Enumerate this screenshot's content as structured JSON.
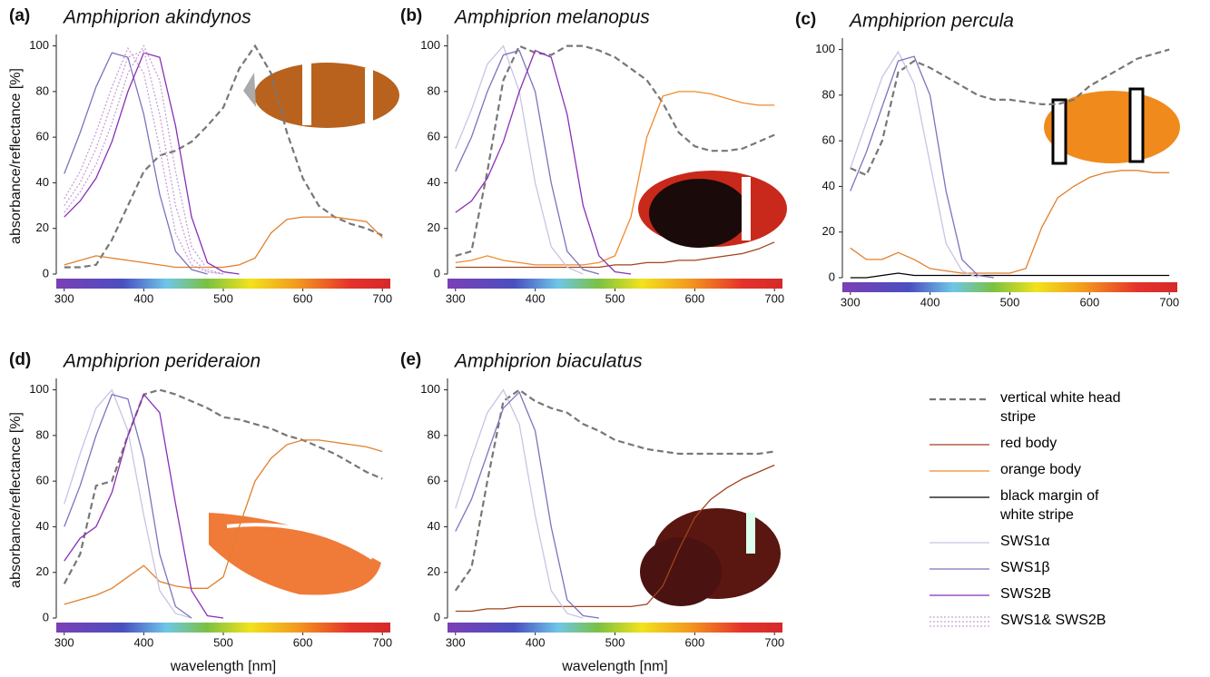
{
  "chart_data": [
    {
      "type": "line",
      "panel_label": "(a)",
      "title": "Amphiprion akindynos",
      "y_label": "absorbance/reflectance [%]",
      "x": [
        300,
        320,
        340,
        360,
        380,
        400,
        420,
        440,
        460,
        480,
        500,
        520,
        540,
        560,
        580,
        600,
        620,
        640,
        660,
        680,
        700
      ],
      "xlim": [
        290,
        710
      ],
      "ylim": [
        0,
        105
      ],
      "xticks": [
        300,
        400,
        500,
        600,
        700
      ],
      "yticks": [
        0,
        20,
        40,
        60,
        80,
        100
      ],
      "series": [
        {
          "name": "vertical white head stripe",
          "color": "#777777",
          "linestyle": "dashed",
          "values": [
            3,
            3,
            4,
            15,
            30,
            45,
            52,
            54,
            58,
            65,
            73,
            90,
            100,
            88,
            62,
            42,
            30,
            25,
            22,
            20,
            17
          ]
        },
        {
          "name": "orange body",
          "color": "#e0802c",
          "linestyle": "solid",
          "values": [
            4,
            6,
            8,
            7,
            6,
            5,
            4,
            3,
            3,
            3,
            3,
            4,
            7,
            18,
            24,
            25,
            25,
            25,
            24,
            23,
            16
          ]
        },
        {
          "name": "SWS1β",
          "color": "#7a74bc",
          "linestyle": "solid",
          "values": [
            44,
            62,
            82,
            97,
            95,
            70,
            35,
            10,
            2,
            0,
            null,
            null,
            null,
            null,
            null,
            null,
            null,
            null,
            null,
            null,
            null
          ]
        },
        {
          "name": "SWS2B",
          "color": "#8a2fb6",
          "linestyle": "solid",
          "values": [
            25,
            32,
            42,
            58,
            80,
            97,
            95,
            65,
            25,
            5,
            1,
            0,
            null,
            null,
            null,
            null,
            null,
            null,
            null,
            null,
            null
          ]
        },
        {
          "name": "SWS1& SWS2B",
          "color": "#c9a0d6",
          "linestyle": "dotted",
          "values": [
            33,
            45,
            62,
            82,
            99,
            88,
            55,
            18,
            4,
            1,
            0,
            null,
            null,
            null,
            null,
            null,
            null,
            null,
            null,
            null,
            null
          ]
        },
        {
          "name": "SWS1& SWS2B",
          "color": "#c9a0d6",
          "linestyle": "dotted",
          "values": [
            30,
            40,
            55,
            75,
            95,
            98,
            70,
            30,
            7,
            1,
            0,
            null,
            null,
            null,
            null,
            null,
            null,
            null,
            null,
            null,
            null
          ]
        },
        {
          "name": "SWS1& SWS2B",
          "color": "#c9a0d6",
          "linestyle": "dotted",
          "values": [
            27,
            36,
            48,
            66,
            88,
            100,
            85,
            45,
            12,
            2,
            0,
            null,
            null,
            null,
            null,
            null,
            null,
            null,
            null,
            null,
            null
          ]
        }
      ]
    },
    {
      "type": "line",
      "panel_label": "(b)",
      "title": "Amphiprion melanopus",
      "x": [
        300,
        320,
        340,
        360,
        380,
        400,
        420,
        440,
        460,
        480,
        500,
        520,
        540,
        560,
        580,
        600,
        620,
        640,
        660,
        680,
        700
      ],
      "xlim": [
        290,
        710
      ],
      "ylim": [
        0,
        105
      ],
      "xticks": [
        300,
        400,
        500,
        600,
        700
      ],
      "yticks": [
        0,
        20,
        40,
        60,
        80,
        100
      ],
      "series": [
        {
          "name": "vertical white head stripe",
          "color": "#777777",
          "linestyle": "dashed",
          "values": [
            8,
            10,
            45,
            85,
            100,
            97,
            96,
            100,
            100,
            98,
            95,
            90,
            85,
            75,
            62,
            56,
            54,
            54,
            55,
            58,
            61
          ]
        },
        {
          "name": "red body",
          "color": "#a0441c",
          "linestyle": "solid",
          "values": [
            3,
            3,
            3,
            3,
            3,
            3,
            3,
            3,
            3,
            3,
            4,
            4,
            5,
            5,
            6,
            6,
            7,
            8,
            9,
            11,
            14
          ]
        },
        {
          "name": "orange body",
          "color": "#f08a2c",
          "linestyle": "solid",
          "values": [
            5,
            6,
            8,
            6,
            5,
            4,
            4,
            4,
            4,
            5,
            8,
            25,
            60,
            78,
            80,
            80,
            79,
            77,
            75,
            74,
            74
          ]
        },
        {
          "name": "SWS1α",
          "color": "#c8c4e4",
          "linestyle": "solid",
          "values": [
            55,
            72,
            92,
            100,
            80,
            40,
            12,
            3,
            0,
            null,
            null,
            null,
            null,
            null,
            null,
            null,
            null,
            null,
            null,
            null,
            null
          ]
        },
        {
          "name": "SWS1β",
          "color": "#7a74bc",
          "linestyle": "solid",
          "values": [
            45,
            60,
            80,
            96,
            98,
            80,
            40,
            10,
            2,
            0,
            null,
            null,
            null,
            null,
            null,
            null,
            null,
            null,
            null,
            null,
            null
          ]
        },
        {
          "name": "SWS2B",
          "color": "#8a2fb6",
          "linestyle": "solid",
          "values": [
            27,
            32,
            42,
            58,
            80,
            98,
            95,
            70,
            30,
            8,
            1,
            0,
            null,
            null,
            null,
            null,
            null,
            null,
            null,
            null,
            null
          ]
        }
      ]
    },
    {
      "type": "line",
      "panel_label": "(c)",
      "title": "Amphiprion percula",
      "x": [
        300,
        320,
        340,
        360,
        380,
        400,
        420,
        440,
        460,
        480,
        500,
        520,
        540,
        560,
        580,
        600,
        620,
        640,
        660,
        680,
        700
      ],
      "xlim": [
        290,
        710
      ],
      "ylim": [
        0,
        105
      ],
      "xticks": [
        300,
        400,
        500,
        600,
        700
      ],
      "yticks": [
        0,
        20,
        40,
        60,
        80,
        100
      ],
      "series": [
        {
          "name": "vertical white head stripe",
          "color": "#777777",
          "linestyle": "dashed",
          "values": [
            48,
            45,
            60,
            90,
            95,
            92,
            88,
            84,
            80,
            78,
            78,
            77,
            76,
            76,
            78,
            84,
            88,
            92,
            96,
            98,
            100
          ]
        },
        {
          "name": "orange body",
          "color": "#e0802c",
          "linestyle": "solid",
          "values": [
            13,
            8,
            8,
            11,
            8,
            4,
            3,
            2,
            2,
            2,
            2,
            4,
            22,
            35,
            40,
            44,
            46,
            47,
            47,
            46,
            46
          ]
        },
        {
          "name": "black margin of white stripe",
          "color": "#000000",
          "linestyle": "solid",
          "values": [
            0,
            0,
            1,
            2,
            1,
            1,
            1,
            1,
            1,
            1,
            1,
            1,
            1,
            1,
            1,
            1,
            1,
            1,
            1,
            1,
            1
          ]
        },
        {
          "name": "SWS1α",
          "color": "#c8c4e4",
          "linestyle": "solid",
          "values": [
            48,
            68,
            88,
            99,
            85,
            50,
            15,
            3,
            0,
            null,
            null,
            null,
            null,
            null,
            null,
            null,
            null,
            null,
            null,
            null,
            null
          ]
        },
        {
          "name": "SWS1β",
          "color": "#7a74bc",
          "linestyle": "solid",
          "values": [
            38,
            55,
            75,
            95,
            97,
            80,
            38,
            8,
            1,
            0,
            null,
            null,
            null,
            null,
            null,
            null,
            null,
            null,
            null,
            null,
            null
          ]
        }
      ]
    },
    {
      "type": "line",
      "panel_label": "(d)",
      "title": "Amphiprion perideraion",
      "y_label": "absorbance/reflectance [%]",
      "x_label": "wavelength [nm]",
      "x": [
        300,
        320,
        340,
        360,
        380,
        400,
        420,
        440,
        460,
        480,
        500,
        520,
        540,
        560,
        580,
        600,
        620,
        640,
        660,
        680,
        700
      ],
      "xlim": [
        290,
        710
      ],
      "ylim": [
        0,
        105
      ],
      "xticks": [
        300,
        400,
        500,
        600,
        700
      ],
      "yticks": [
        0,
        20,
        40,
        60,
        80,
        100
      ],
      "series": [
        {
          "name": "vertical white head stripe",
          "color": "#777777",
          "linestyle": "dashed",
          "values": [
            15,
            28,
            58,
            60,
            80,
            98,
            100,
            98,
            95,
            92,
            88,
            87,
            85,
            83,
            80,
            78,
            75,
            72,
            68,
            64,
            61
          ]
        },
        {
          "name": "orange body",
          "color": "#e0802c",
          "linestyle": "solid",
          "values": [
            6,
            8,
            10,
            13,
            18,
            23,
            16,
            14,
            13,
            13,
            18,
            40,
            60,
            70,
            76,
            78,
            78,
            77,
            76,
            75,
            73
          ]
        },
        {
          "name": "SWS1α",
          "color": "#c8c4e4",
          "linestyle": "solid",
          "values": [
            50,
            72,
            92,
            100,
            82,
            45,
            12,
            2,
            0,
            null,
            null,
            null,
            null,
            null,
            null,
            null,
            null,
            null,
            null,
            null,
            null
          ]
        },
        {
          "name": "SWS1β",
          "color": "#7a74bc",
          "linestyle": "solid",
          "values": [
            40,
            58,
            80,
            98,
            96,
            70,
            28,
            5,
            0,
            null,
            null,
            null,
            null,
            null,
            null,
            null,
            null,
            null,
            null,
            null,
            null
          ]
        },
        {
          "name": "SWS2B",
          "color": "#8a2fb6",
          "linestyle": "solid",
          "values": [
            25,
            35,
            40,
            55,
            80,
            98,
            90,
            50,
            12,
            1,
            0,
            null,
            null,
            null,
            null,
            null,
            null,
            null,
            null,
            null,
            null
          ]
        }
      ]
    },
    {
      "type": "line",
      "panel_label": "(e)",
      "title": "Amphiprion biaculatus",
      "x_label": "wavelength [nm]",
      "x": [
        300,
        320,
        340,
        360,
        380,
        400,
        420,
        440,
        460,
        480,
        500,
        520,
        540,
        560,
        580,
        600,
        620,
        640,
        660,
        680,
        700
      ],
      "xlim": [
        290,
        710
      ],
      "ylim": [
        0,
        105
      ],
      "xticks": [
        300,
        400,
        500,
        600,
        700
      ],
      "yticks": [
        0,
        20,
        40,
        60,
        80,
        100
      ],
      "series": [
        {
          "name": "vertical white head stripe",
          "color": "#777777",
          "linestyle": "dashed",
          "values": [
            12,
            22,
            60,
            95,
            100,
            95,
            92,
            90,
            85,
            82,
            78,
            76,
            74,
            73,
            72,
            72,
            72,
            72,
            72,
            72,
            73
          ]
        },
        {
          "name": "red body",
          "color": "#a0441c",
          "linestyle": "solid",
          "values": [
            3,
            3,
            4,
            4,
            5,
            5,
            5,
            5,
            5,
            5,
            5,
            5,
            6,
            14,
            30,
            44,
            52,
            57,
            61,
            64,
            67
          ]
        },
        {
          "name": "SWS1α",
          "color": "#c8c4e4",
          "linestyle": "solid",
          "values": [
            48,
            70,
            90,
            100,
            85,
            45,
            12,
            2,
            0,
            null,
            null,
            null,
            null,
            null,
            null,
            null,
            null,
            null,
            null,
            null,
            null
          ]
        },
        {
          "name": "SWS1β",
          "color": "#7a74bc",
          "linestyle": "solid",
          "values": [
            38,
            52,
            72,
            92,
            99,
            82,
            40,
            8,
            1,
            0,
            null,
            null,
            null,
            null,
            null,
            null,
            null,
            null,
            null,
            null,
            null
          ]
        }
      ]
    }
  ]
}
